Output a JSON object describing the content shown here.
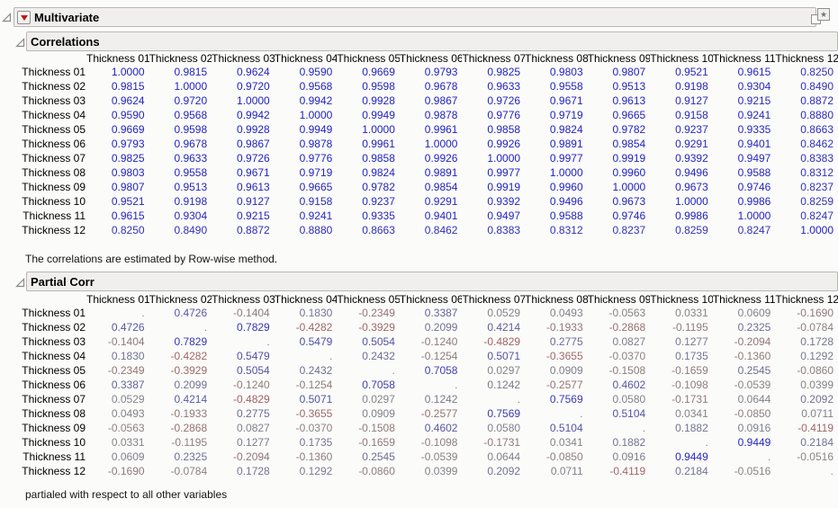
{
  "colors": {
    "positive": "#2121c2",
    "negative": "#c23a3a",
    "neutral": "#878787",
    "red_triangle": "#cc1111",
    "bar_background": "#f0efee",
    "bar_border": "#b9b7b4"
  },
  "icons": {
    "disclosure": "disclosure-open-triangle",
    "menu": "red-triangle-menu",
    "window": "new-window-star"
  },
  "outline": {
    "multivariate": {
      "title": "Multivariate"
    }
  },
  "correlations": {
    "title": "Correlations",
    "footnote": "The correlations are estimated by Row-wise method.",
    "columns": [
      "Thickness 01",
      "Thickness 02",
      "Thickness 03",
      "Thickness 04",
      "Thickness 05",
      "Thickness 06",
      "Thickness 07",
      "Thickness 08",
      "Thickness 09",
      "Thickness 10",
      "Thickness 11",
      "Thickness 12"
    ],
    "rows": [
      {
        "label": "Thickness 01",
        "values": [
          "1.0000",
          "0.9815",
          "0.9624",
          "0.9590",
          "0.9669",
          "0.9793",
          "0.9825",
          "0.9803",
          "0.9807",
          "0.9521",
          "0.9615",
          "0.8250"
        ]
      },
      {
        "label": "Thickness 02",
        "values": [
          "0.9815",
          "1.0000",
          "0.9720",
          "0.9568",
          "0.9598",
          "0.9678",
          "0.9633",
          "0.9558",
          "0.9513",
          "0.9198",
          "0.9304",
          "0.8490"
        ]
      },
      {
        "label": "Thickness 03",
        "values": [
          "0.9624",
          "0.9720",
          "1.0000",
          "0.9942",
          "0.9928",
          "0.9867",
          "0.9726",
          "0.9671",
          "0.9613",
          "0.9127",
          "0.9215",
          "0.8872"
        ]
      },
      {
        "label": "Thickness 04",
        "values": [
          "0.9590",
          "0.9568",
          "0.9942",
          "1.0000",
          "0.9949",
          "0.9878",
          "0.9776",
          "0.9719",
          "0.9665",
          "0.9158",
          "0.9241",
          "0.8880"
        ]
      },
      {
        "label": "Thickness 05",
        "values": [
          "0.9669",
          "0.9598",
          "0.9928",
          "0.9949",
          "1.0000",
          "0.9961",
          "0.9858",
          "0.9824",
          "0.9782",
          "0.9237",
          "0.9335",
          "0.8663"
        ]
      },
      {
        "label": "Thickness 06",
        "values": [
          "0.9793",
          "0.9678",
          "0.9867",
          "0.9878",
          "0.9961",
          "1.0000",
          "0.9926",
          "0.9891",
          "0.9854",
          "0.9291",
          "0.9401",
          "0.8462"
        ]
      },
      {
        "label": "Thickness 07",
        "values": [
          "0.9825",
          "0.9633",
          "0.9726",
          "0.9776",
          "0.9858",
          "0.9926",
          "1.0000",
          "0.9977",
          "0.9919",
          "0.9392",
          "0.9497",
          "0.8383"
        ]
      },
      {
        "label": "Thickness 08",
        "values": [
          "0.9803",
          "0.9558",
          "0.9671",
          "0.9719",
          "0.9824",
          "0.9891",
          "0.9977",
          "1.0000",
          "0.9960",
          "0.9496",
          "0.9588",
          "0.8312"
        ]
      },
      {
        "label": "Thickness 09",
        "values": [
          "0.9807",
          "0.9513",
          "0.9613",
          "0.9665",
          "0.9782",
          "0.9854",
          "0.9919",
          "0.9960",
          "1.0000",
          "0.9673",
          "0.9746",
          "0.8237"
        ]
      },
      {
        "label": "Thickness 10",
        "values": [
          "0.9521",
          "0.9198",
          "0.9127",
          "0.9158",
          "0.9237",
          "0.9291",
          "0.9392",
          "0.9496",
          "0.9673",
          "1.0000",
          "0.9986",
          "0.8259"
        ]
      },
      {
        "label": "Thickness 11",
        "values": [
          "0.9615",
          "0.9304",
          "0.9215",
          "0.9241",
          "0.9335",
          "0.9401",
          "0.9497",
          "0.9588",
          "0.9746",
          "0.9986",
          "1.0000",
          "0.8247"
        ]
      },
      {
        "label": "Thickness 12",
        "values": [
          "0.8250",
          "0.8490",
          "0.8872",
          "0.8880",
          "0.8663",
          "0.8462",
          "0.8383",
          "0.8312",
          "0.8237",
          "0.8259",
          "0.8247",
          "1.0000"
        ]
      }
    ]
  },
  "partial_corr": {
    "title": "Partial Corr",
    "footnote": "partialed with respect to all other variables",
    "columns": [
      "Thickness 01",
      "Thickness 02",
      "Thickness 03",
      "Thickness 04",
      "Thickness 05",
      "Thickness 06",
      "Thickness 07",
      "Thickness 08",
      "Thickness 09",
      "Thickness 10",
      "Thickness 11",
      "Thickness 12"
    ],
    "rows": [
      {
        "label": "Thickness 01",
        "values": [
          ".",
          "0.4726",
          "-0.1404",
          "0.1830",
          "-0.2349",
          "0.3387",
          "0.0529",
          "0.0493",
          "-0.0563",
          "0.0331",
          "0.0609",
          "-0.1690"
        ]
      },
      {
        "label": "Thickness 02",
        "values": [
          "0.4726",
          ".",
          "0.7829",
          "-0.4282",
          "-0.3929",
          "0.2099",
          "0.4214",
          "-0.1933",
          "-0.2868",
          "-0.1195",
          "0.2325",
          "-0.0784"
        ]
      },
      {
        "label": "Thickness 03",
        "values": [
          "-0.1404",
          "0.7829",
          ".",
          "0.5479",
          "0.5054",
          "-0.1240",
          "-0.4829",
          "0.2775",
          "0.0827",
          "0.1277",
          "-0.2094",
          "0.1728"
        ]
      },
      {
        "label": "Thickness 04",
        "values": [
          "0.1830",
          "-0.4282",
          "0.5479",
          ".",
          "0.2432",
          "-0.1254",
          "0.5071",
          "-0.3655",
          "-0.0370",
          "0.1735",
          "-0.1360",
          "0.1292"
        ]
      },
      {
        "label": "Thickness 05",
        "values": [
          "-0.2349",
          "-0.3929",
          "0.5054",
          "0.2432",
          ".",
          "0.7058",
          "0.0297",
          "0.0909",
          "-0.1508",
          "-0.1659",
          "0.2545",
          "-0.0860"
        ]
      },
      {
        "label": "Thickness 06",
        "values": [
          "0.3387",
          "0.2099",
          "-0.1240",
          "-0.1254",
          "0.7058",
          ".",
          "0.1242",
          "-0.2577",
          "0.4602",
          "-0.1098",
          "-0.0539",
          "0.0399"
        ]
      },
      {
        "label": "Thickness 07",
        "values": [
          "0.0529",
          "0.4214",
          "-0.4829",
          "0.5071",
          "0.0297",
          "0.1242",
          ".",
          "0.7569",
          "0.0580",
          "-0.1731",
          "0.0644",
          "0.2092"
        ]
      },
      {
        "label": "Thickness 08",
        "values": [
          "0.0493",
          "-0.1933",
          "0.2775",
          "-0.3655",
          "0.0909",
          "-0.2577",
          "0.7569",
          ".",
          "0.5104",
          "0.0341",
          "-0.0850",
          "0.0711"
        ]
      },
      {
        "label": "Thickness 09",
        "values": [
          "-0.0563",
          "-0.2868",
          "0.0827",
          "-0.0370",
          "-0.1508",
          "0.4602",
          "0.0580",
          "0.5104",
          ".",
          "0.1882",
          "0.0916",
          "-0.4119"
        ]
      },
      {
        "label": "Thickness 10",
        "values": [
          "0.0331",
          "-0.1195",
          "0.1277",
          "0.1735",
          "-0.1659",
          "-0.1098",
          "-0.1731",
          "0.0341",
          "0.1882",
          ".",
          "0.9449",
          "0.2184"
        ]
      },
      {
        "label": "Thickness 11",
        "values": [
          "0.0609",
          "0.2325",
          "-0.2094",
          "-0.1360",
          "0.2545",
          "-0.0539",
          "0.0644",
          "-0.0850",
          "0.0916",
          "0.9449",
          ".",
          "-0.0516"
        ]
      },
      {
        "label": "Thickness 12",
        "values": [
          "-0.1690",
          "-0.0784",
          "0.1728",
          "0.1292",
          "-0.0860",
          "0.0399",
          "0.2092",
          "0.0711",
          "-0.4119",
          "0.2184",
          "-0.0516",
          "."
        ]
      }
    ]
  }
}
